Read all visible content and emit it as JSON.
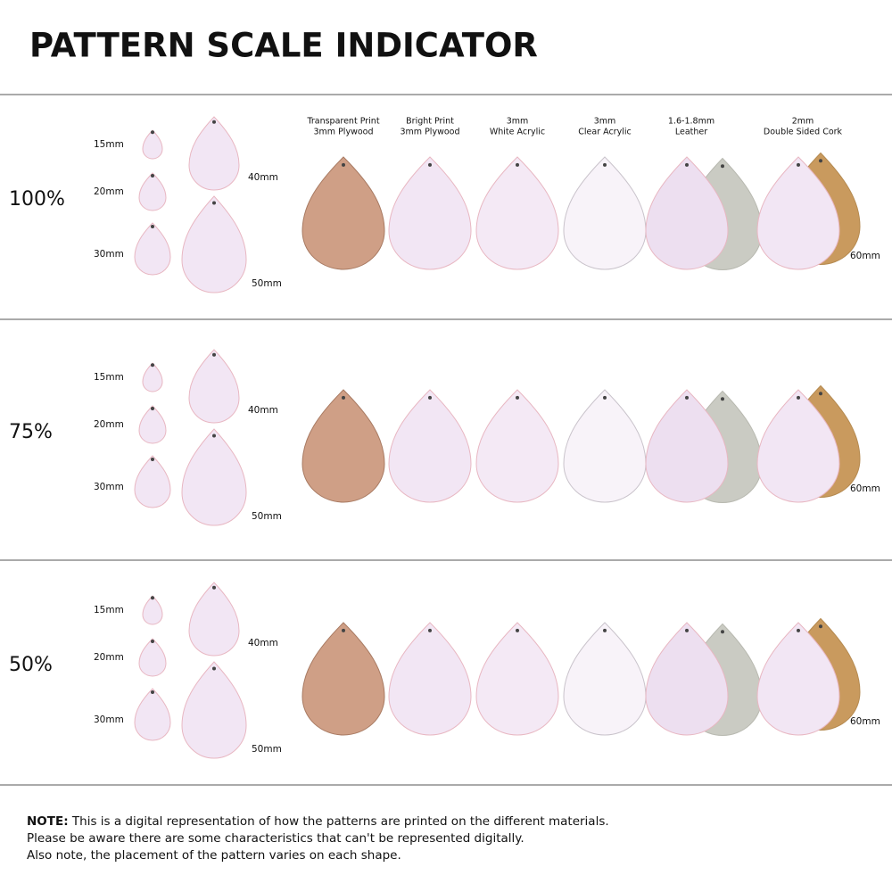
{
  "title": "PATTERN SCALE INDICATOR",
  "materials": [
    [
      "Transparent Print",
      "3mm Plywood"
    ],
    [
      "Bright Print",
      "3mm Plywood"
    ],
    [
      "3mm",
      "White Acrylic"
    ],
    [
      "3mm",
      "Clear Acrylic"
    ],
    [
      "1.6-1.8mm",
      "Leather"
    ],
    [
      "2mm",
      "Double Sided Cork"
    ]
  ],
  "rows": [
    {
      "scale": "100%",
      "sizes": [
        "15mm",
        "20mm",
        "30mm",
        "40mm",
        "50mm"
      ],
      "material_size": "60mm"
    },
    {
      "scale": "75%",
      "sizes": [
        "15mm",
        "20mm",
        "30mm",
        "40mm",
        "50mm"
      ],
      "material_size": "60mm"
    },
    {
      "scale": "50%",
      "sizes": [
        "15mm",
        "20mm",
        "30mm",
        "40mm",
        "50mm"
      ],
      "material_size": "60mm"
    }
  ],
  "note": {
    "label": "NOTE:",
    "lines": [
      "This is a digital representation of how the patterns are printed on the different materials.",
      "Please be aware there are some characteristics that can't be represented digitally.",
      "Also note, the placement of the pattern varies on each shape."
    ]
  }
}
